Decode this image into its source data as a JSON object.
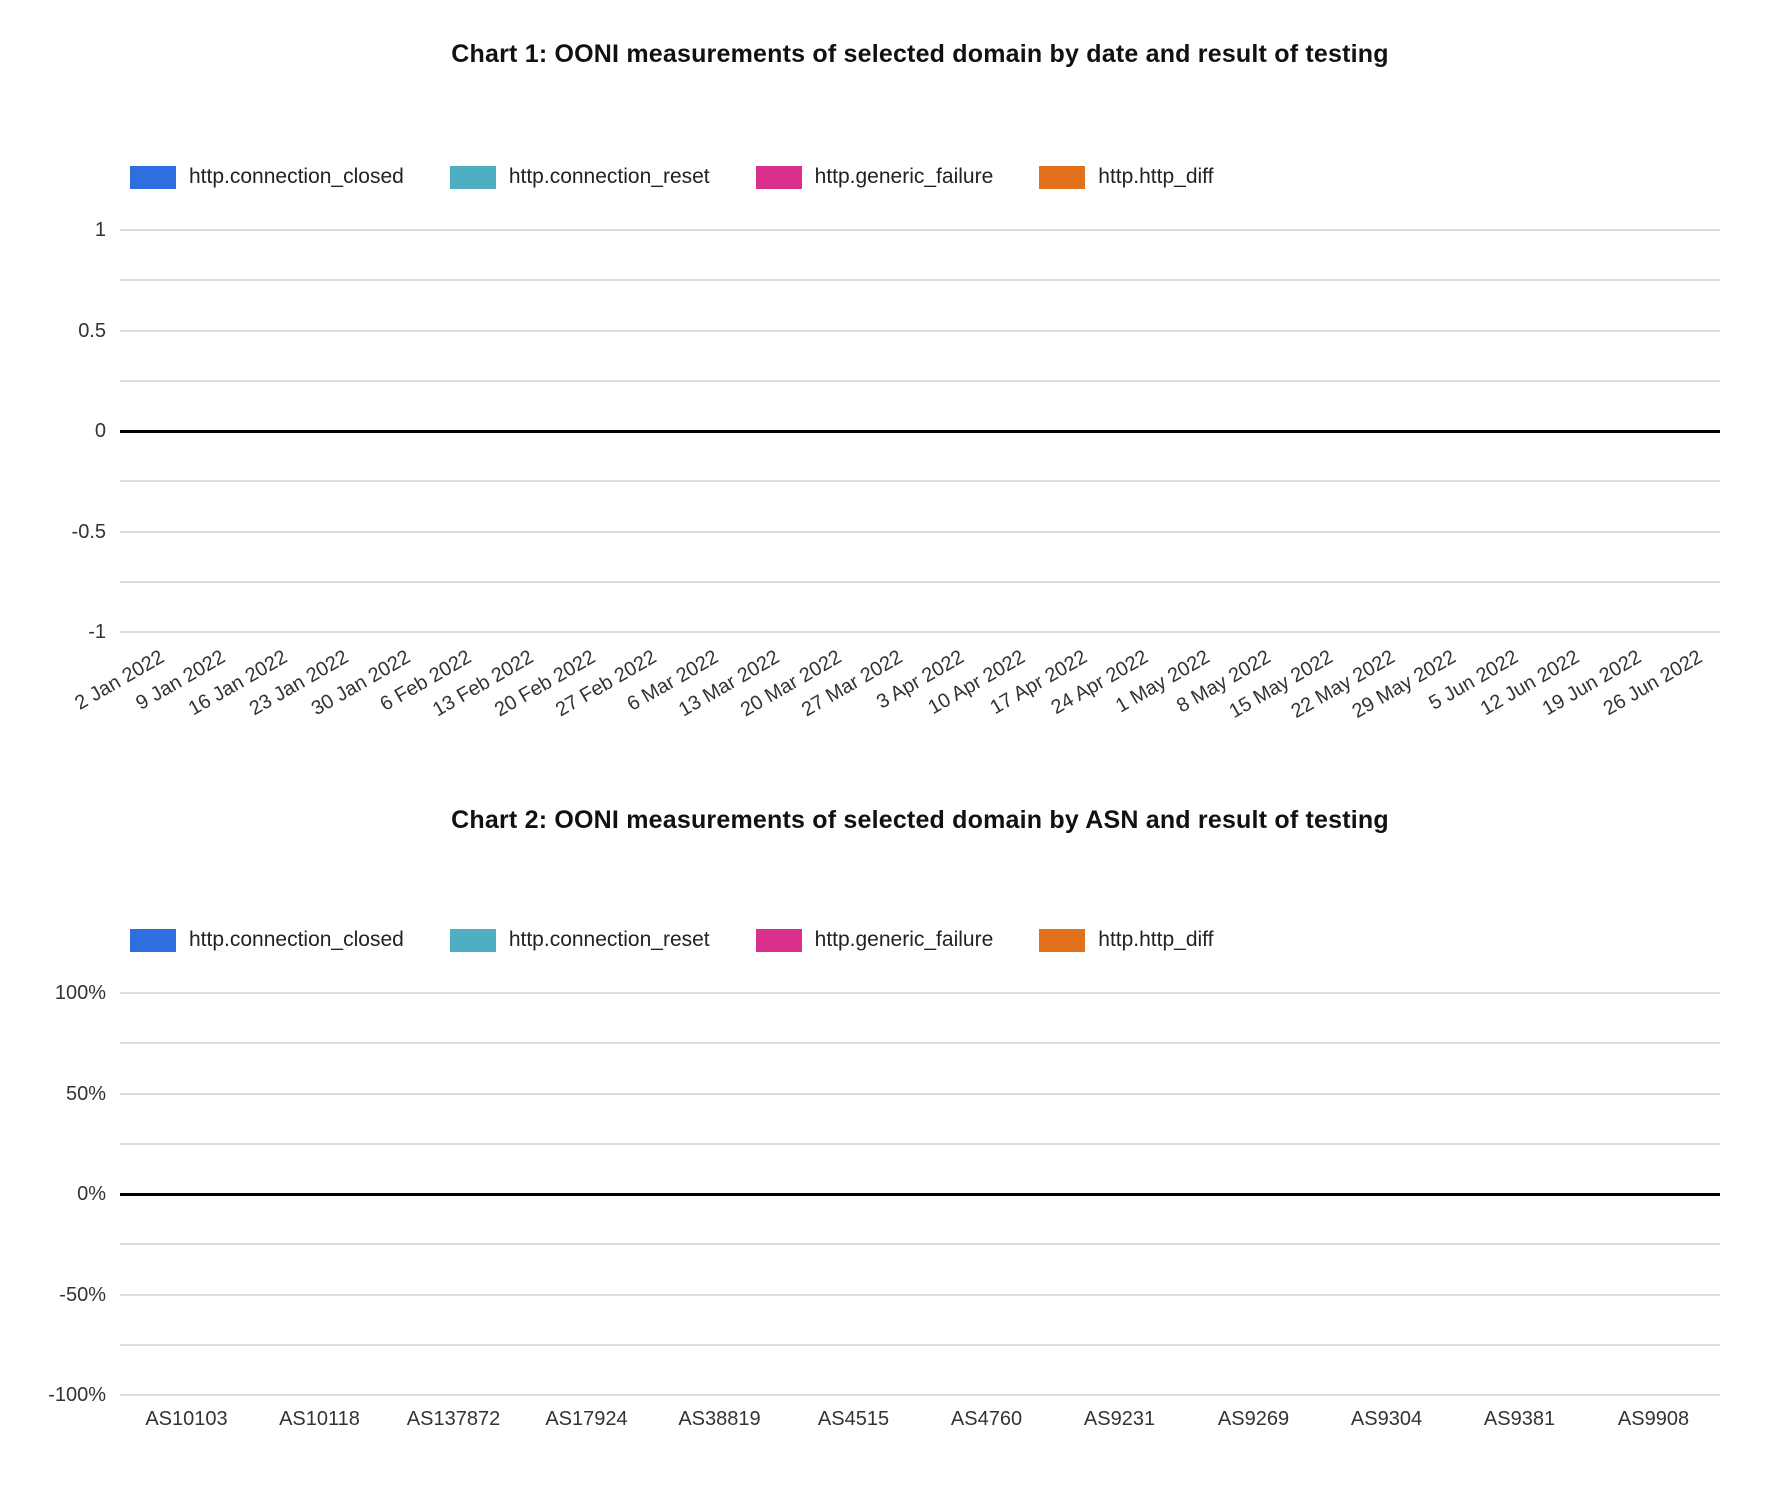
{
  "styles": {
    "grid_color": "#dcdcdc",
    "zero_axis_color": "#000000",
    "tick_label_color": "#333333",
    "title_color": "#111111"
  },
  "chart_data": [
    {
      "type": "bar",
      "title": "Chart 1: OONI measurements of selected domain by date and result of testing",
      "xlabel": "",
      "ylabel": "",
      "ylim": [
        -1,
        1
      ],
      "grid_step": 0.25,
      "zero_line": 0,
      "legend_position": "top-left",
      "x_label_rotation": -30,
      "yticks": [
        {
          "value": 1,
          "label": "1"
        },
        {
          "value": 0.5,
          "label": "0.5"
        },
        {
          "value": 0,
          "label": "0"
        },
        {
          "value": -0.5,
          "label": "-0.5"
        },
        {
          "value": -1,
          "label": "-1"
        }
      ],
      "categories": [
        "2 Jan 2022",
        "9 Jan 2022",
        "16 Jan 2022",
        "23 Jan 2022",
        "30 Jan 2022",
        "6 Feb 2022",
        "13 Feb 2022",
        "20 Feb 2022",
        "27 Feb 2022",
        "6 Mar 2022",
        "13 Mar 2022",
        "20 Mar 2022",
        "27 Mar 2022",
        "3 Apr 2022",
        "10 Apr 2022",
        "17 Apr 2022",
        "24 Apr 2022",
        "1 May 2022",
        "8 May 2022",
        "15 May 2022",
        "22 May 2022",
        "29 May 2022",
        "5 Jun 2022",
        "12 Jun 2022",
        "19 Jun 2022",
        "26 Jun 2022"
      ],
      "series": [
        {
          "name": "http.connection_closed",
          "color": "#2e6fe0",
          "values": []
        },
        {
          "name": "http.connection_reset",
          "color": "#4dafc1",
          "values": []
        },
        {
          "name": "http.generic_failure",
          "color": "#d9308e",
          "values": []
        },
        {
          "name": "http.http_diff",
          "color": "#e2711d",
          "values": []
        }
      ]
    },
    {
      "type": "bar",
      "title": "Chart 2: OONI measurements of selected domain by ASN and result of testing",
      "xlabel": "",
      "ylabel": "",
      "ylim": [
        -100,
        100
      ],
      "grid_step": 25,
      "zero_line": 0,
      "legend_position": "top-left",
      "x_label_rotation": 0,
      "yticks": [
        {
          "value": 100,
          "label": "100%"
        },
        {
          "value": 50,
          "label": "50%"
        },
        {
          "value": 0,
          "label": "0%"
        },
        {
          "value": -50,
          "label": "-50%"
        },
        {
          "value": -100,
          "label": "-100%"
        }
      ],
      "categories": [
        "AS10103",
        "AS10118",
        "AS137872",
        "AS17924",
        "AS38819",
        "AS4515",
        "AS4760",
        "AS9231",
        "AS9269",
        "AS9304",
        "AS9381",
        "AS9908"
      ],
      "series": [
        {
          "name": "http.connection_closed",
          "color": "#2e6fe0",
          "values": []
        },
        {
          "name": "http.connection_reset",
          "color": "#4dafc1",
          "values": []
        },
        {
          "name": "http.generic_failure",
          "color": "#d9308e",
          "values": []
        },
        {
          "name": "http.http_diff",
          "color": "#e2711d",
          "values": []
        }
      ]
    }
  ]
}
